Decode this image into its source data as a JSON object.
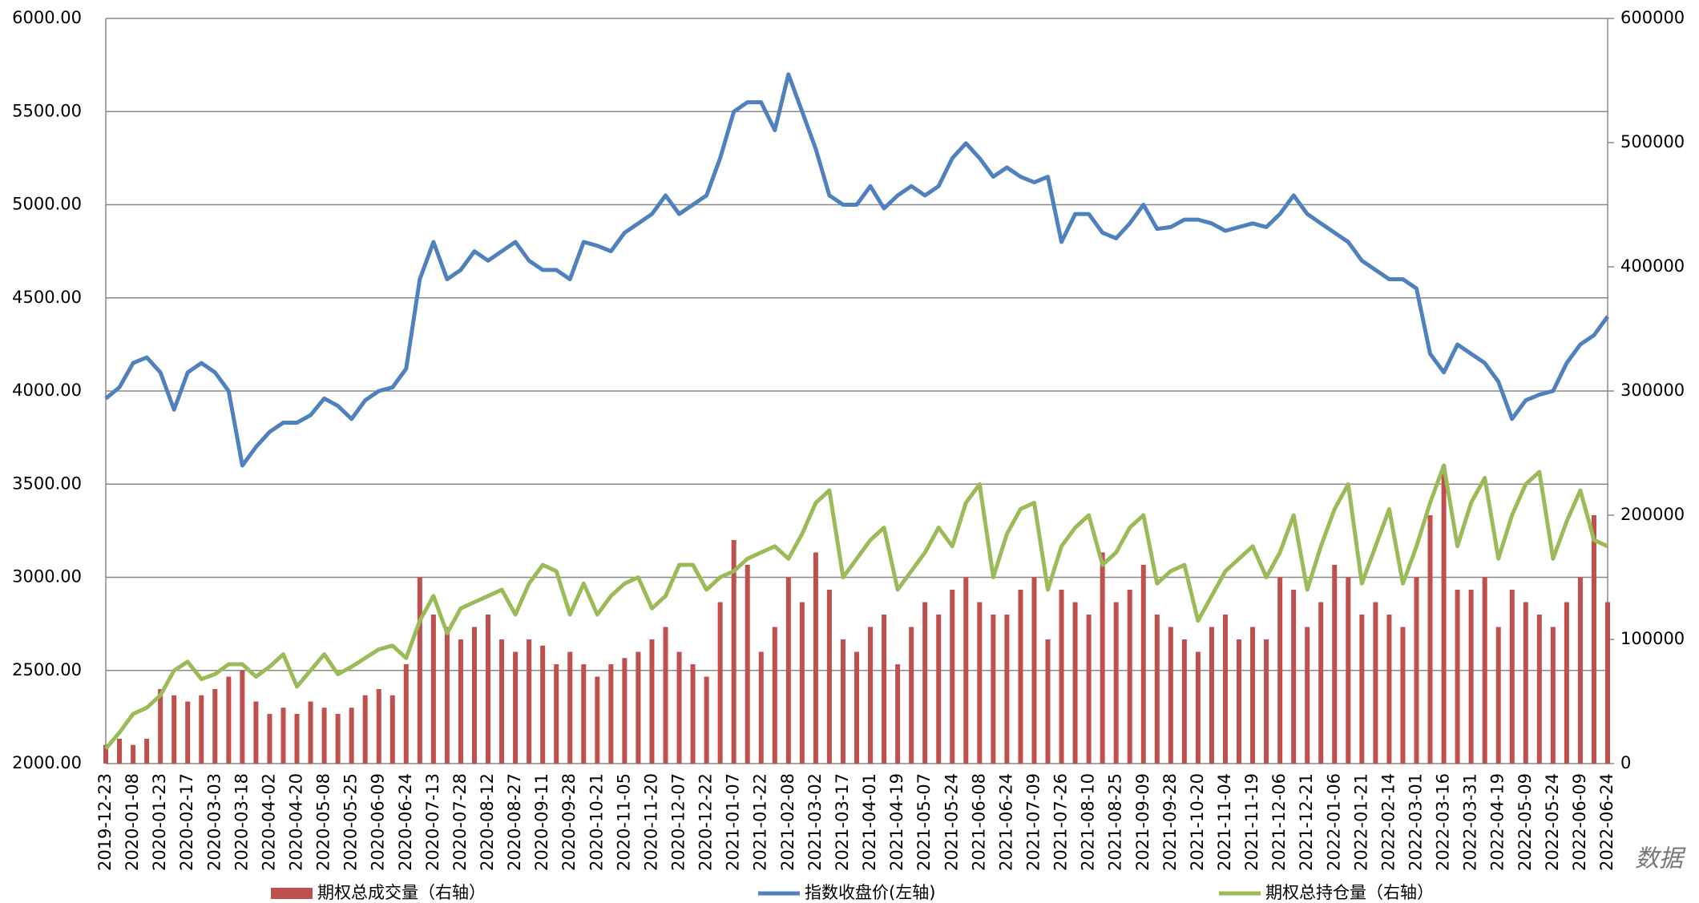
{
  "chart_data": {
    "type": "combo",
    "categories": [
      "2019-12-23",
      null,
      "2020-01-08",
      null,
      "2020-01-23",
      null,
      "2020-02-17",
      null,
      "2020-03-03",
      null,
      "2020-03-18",
      null,
      "2020-04-02",
      null,
      "2020-04-20",
      null,
      "2020-05-08",
      null,
      "2020-05-25",
      null,
      "2020-06-09",
      null,
      "2020-06-24",
      null,
      "2020-07-13",
      null,
      "2020-07-28",
      null,
      "2020-08-12",
      null,
      "2020-08-27",
      null,
      "2020-09-11",
      null,
      "2020-09-28",
      null,
      "2020-10-21",
      null,
      "2020-11-05",
      null,
      "2020-11-20",
      null,
      "2020-12-07",
      null,
      "2020-12-22",
      null,
      "2021-01-07",
      null,
      "2021-01-22",
      null,
      "2021-02-08",
      null,
      "2021-03-02",
      null,
      "2021-03-17",
      null,
      "2021-04-01",
      null,
      "2021-04-19",
      null,
      "2021-05-07",
      null,
      "2021-05-24",
      null,
      "2021-06-08",
      null,
      "2021-06-24",
      null,
      "2021-07-09",
      null,
      "2021-07-26",
      null,
      "2021-08-10",
      null,
      "2021-08-25",
      null,
      "2021-09-09",
      null,
      "2021-09-28",
      null,
      "2021-10-20",
      null,
      "2021-11-04",
      null,
      "2021-11-19",
      null,
      "2021-12-06",
      null,
      "2021-12-21",
      null,
      "2022-01-06",
      null,
      "2022-01-21",
      null,
      "2022-02-14",
      null,
      "2022-03-01",
      null,
      "2022-03-16",
      null,
      "2022-03-31",
      null,
      "2022-04-19",
      null,
      "2022-05-09",
      null,
      "2022-05-24",
      null,
      "2022-06-09",
      null,
      "2022-06-24"
    ],
    "series": [
      {
        "name": "期权总成交量（右轴）",
        "type": "bar",
        "axis": "y2",
        "color": "#c0504d",
        "values": [
          15000,
          20000,
          15000,
          20000,
          60000,
          55000,
          50000,
          55000,
          60000,
          70000,
          75000,
          50000,
          40000,
          45000,
          40000,
          50000,
          45000,
          40000,
          45000,
          55000,
          60000,
          55000,
          80000,
          150000,
          120000,
          110000,
          100000,
          110000,
          120000,
          100000,
          90000,
          100000,
          95000,
          80000,
          90000,
          80000,
          70000,
          80000,
          85000,
          90000,
          100000,
          110000,
          90000,
          80000,
          70000,
          130000,
          180000,
          160000,
          90000,
          110000,
          150000,
          130000,
          170000,
          140000,
          100000,
          90000,
          110000,
          120000,
          80000,
          110000,
          130000,
          120000,
          140000,
          150000,
          130000,
          120000,
          120000,
          140000,
          150000,
          100000,
          140000,
          130000,
          120000,
          170000,
          130000,
          140000,
          160000,
          120000,
          110000,
          100000,
          90000,
          110000,
          120000,
          100000,
          110000,
          100000,
          150000,
          140000,
          110000,
          130000,
          160000,
          150000,
          120000,
          130000,
          120000,
          110000,
          150000,
          200000,
          240000,
          140000,
          140000,
          150000,
          110000,
          140000,
          130000,
          120000,
          110000,
          130000,
          150000,
          200000,
          130000
        ]
      },
      {
        "name": "指数收盘价(左轴)",
        "type": "line",
        "axis": "y",
        "color": "#4f81bd",
        "values": [
          3960,
          4020,
          4150,
          4180,
          4100,
          3900,
          4100,
          4150,
          4100,
          4000,
          3600,
          3700,
          3780,
          3830,
          3830,
          3870,
          3960,
          3920,
          3850,
          3950,
          4000,
          4020,
          4120,
          4600,
          4800,
          4600,
          4650,
          4750,
          4700,
          4750,
          4800,
          4700,
          4650,
          4650,
          4600,
          4800,
          4780,
          4750,
          4850,
          4900,
          4950,
          5050,
          4950,
          5000,
          5050,
          5250,
          5500,
          5550,
          5550,
          5400,
          5700,
          5500,
          5300,
          5050,
          5000,
          5000,
          5100,
          4980,
          5050,
          5100,
          5050,
          5100,
          5250,
          5330,
          5250,
          5150,
          5200,
          5150,
          5120,
          5150,
          4800,
          4950,
          4950,
          4850,
          4820,
          4900,
          5000,
          4870,
          4880,
          4920,
          4920,
          4900,
          4860,
          4880,
          4900,
          4880,
          4950,
          5050,
          4950,
          4900,
          4850,
          4800,
          4700,
          4650,
          4600,
          4600,
          4550,
          4200,
          4100,
          4250,
          4200,
          4150,
          4050,
          3850,
          3950,
          3980,
          4000,
          4150,
          4250,
          4300,
          4400
        ]
      },
      {
        "name": "期权总持仓量（右轴）",
        "type": "line",
        "axis": "y2",
        "color": "#9bbb59",
        "values": [
          12000,
          25000,
          40000,
          45000,
          55000,
          75000,
          82000,
          68000,
          72000,
          80000,
          80000,
          70000,
          78000,
          88000,
          62000,
          75000,
          88000,
          72000,
          78000,
          85000,
          92000,
          95000,
          85000,
          115000,
          135000,
          105000,
          125000,
          130000,
          135000,
          140000,
          120000,
          145000,
          160000,
          155000,
          120000,
          145000,
          120000,
          135000,
          145000,
          150000,
          125000,
          135000,
          160000,
          160000,
          140000,
          150000,
          155000,
          165000,
          170000,
          175000,
          165000,
          185000,
          210000,
          220000,
          150000,
          165000,
          180000,
          190000,
          140000,
          155000,
          170000,
          190000,
          175000,
          210000,
          225000,
          150000,
          185000,
          205000,
          210000,
          140000,
          175000,
          190000,
          200000,
          160000,
          170000,
          190000,
          200000,
          145000,
          155000,
          160000,
          115000,
          135000,
          155000,
          165000,
          175000,
          150000,
          170000,
          200000,
          140000,
          175000,
          205000,
          225000,
          145000,
          175000,
          205000,
          145000,
          175000,
          210000,
          240000,
          175000,
          210000,
          230000,
          165000,
          200000,
          225000,
          235000,
          165000,
          195000,
          220000,
          180000,
          175000
        ]
      }
    ],
    "ylim": [
      2000,
      6000
    ],
    "yticks": [
      {
        "value": 2000,
        "label": "2000.00"
      },
      {
        "value": 2500,
        "label": "2500.00"
      },
      {
        "value": 3000,
        "label": "3000.00"
      },
      {
        "value": 3500,
        "label": "3500.00"
      },
      {
        "value": 4000,
        "label": "4000.00"
      },
      {
        "value": 4500,
        "label": "4500.00"
      },
      {
        "value": 5000,
        "label": "5000.00"
      },
      {
        "value": 5500,
        "label": "5500.00"
      },
      {
        "value": 6000,
        "label": "6000.00"
      }
    ],
    "y2lim": [
      0,
      600000
    ],
    "y2ticks": [
      0,
      100000,
      200000,
      300000,
      400000,
      500000,
      600000
    ],
    "grid": true,
    "legend": "bottom",
    "watermark": "数据"
  }
}
